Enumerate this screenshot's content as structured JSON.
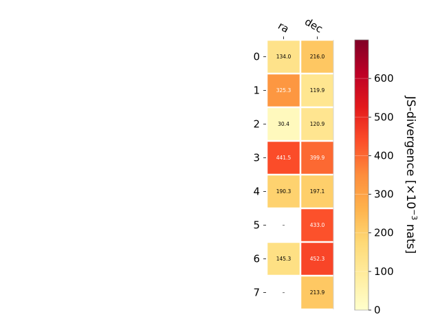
{
  "chart_data": {
    "type": "heatmap",
    "x_categories": [
      "ra",
      "dec"
    ],
    "y_categories": [
      "0",
      "1",
      "2",
      "3",
      "4",
      "5",
      "6",
      "7"
    ],
    "values": [
      [
        134.0,
        216.0
      ],
      [
        325.3,
        119.9
      ],
      [
        30.4,
        120.9
      ],
      [
        441.5,
        399.9
      ],
      [
        190.3,
        197.1
      ],
      [
        null,
        433.0
      ],
      [
        145.3,
        452.3
      ],
      [
        null,
        213.9
      ]
    ],
    "cell_labels": [
      [
        "134.0",
        "216.0"
      ],
      [
        "325.3",
        "119.9"
      ],
      [
        "30.4",
        "120.9"
      ],
      [
        "441.5",
        "399.9"
      ],
      [
        "190.3",
        "197.1"
      ],
      [
        "–",
        "433.0"
      ],
      [
        "145.3",
        "452.3"
      ],
      [
        "–",
        "213.9"
      ]
    ],
    "missing_label": "–",
    "colormap": "YlOrRd",
    "colorbar": {
      "label_main": "JS-divergence [×10",
      "label_sup": "−3",
      "label_tail": " nats]",
      "range": [
        0,
        700
      ],
      "ticks": [
        "0",
        "100",
        "200",
        "300",
        "400",
        "500",
        "600"
      ]
    },
    "colors": {
      "ylorrd": [
        "#ffffcc",
        "#ffeda0",
        "#fed976",
        "#feb24c",
        "#fd8d3c",
        "#fc4e2a",
        "#e31a1c",
        "#bd0026",
        "#800026"
      ]
    }
  }
}
